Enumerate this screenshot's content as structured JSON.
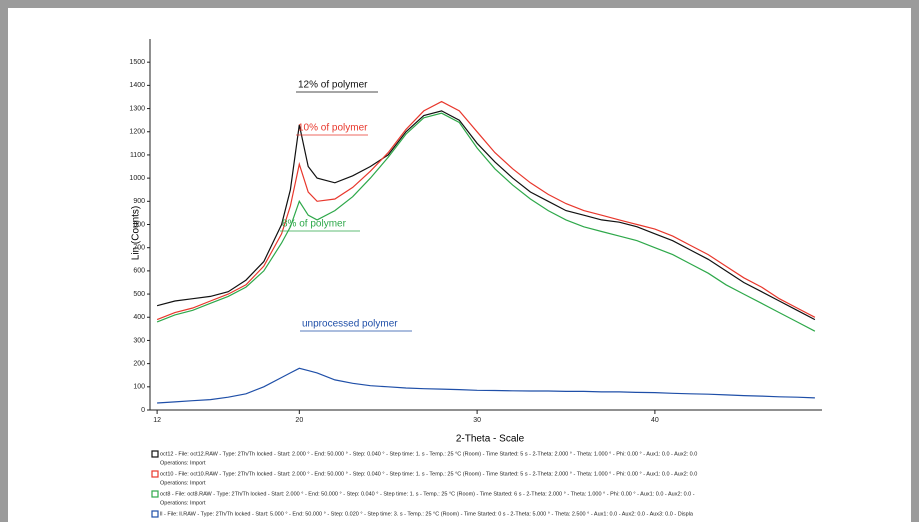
{
  "chart_data": {
    "type": "line",
    "x_label": "2-Theta - Scale",
    "y_label": "Lin (Counts)",
    "xlim": [
      11.6,
      49.4
    ],
    "xticks": [
      12,
      20,
      30,
      40
    ],
    "ylim": [
      0,
      1600
    ],
    "yticks": [
      0,
      100,
      200,
      300,
      400,
      500,
      600,
      700,
      800,
      900,
      1000,
      1100,
      1200,
      1300,
      1400,
      1500
    ],
    "x": [
      12,
      13,
      14,
      15,
      16,
      17,
      18,
      19,
      19.5,
      20,
      20.5,
      21,
      22,
      23,
      24,
      25,
      26,
      27,
      28,
      29,
      30,
      31,
      32,
      33,
      34,
      35,
      36,
      37,
      38,
      39,
      40,
      41,
      42,
      43,
      44,
      45,
      46,
      47,
      48,
      49
    ],
    "series": [
      {
        "name": "oct12 - File: oct12.RAW - Type: 2Th/Th locked - Start: 2.000 ° - End: 50.000 ° - Step: 0.040 ° - Step time: 1. s - Temp.: 25 °C (Room) - Time Started: 5 s - 2-Theta: 2.000 ° - Theta: 1.000 ° - Phi: 0.00 ° - Aux1: 0.0 - Aux2: 0.0",
        "note": "Operations: Import",
        "color": "#111111",
        "values": [
          450,
          470,
          480,
          490,
          510,
          560,
          640,
          800,
          950,
          1230,
          1050,
          1000,
          980,
          1010,
          1050,
          1100,
          1200,
          1270,
          1290,
          1250,
          1150,
          1070,
          1000,
          940,
          900,
          860,
          840,
          820,
          810,
          790,
          760,
          730,
          690,
          650,
          600,
          550,
          510,
          470,
          430,
          390
        ]
      },
      {
        "name": "oct10 - File: oct10.RAW - Type: 2Th/Th locked - Start: 2.000 ° - End: 50.000 ° - Step: 0.040 ° - Step time: 1. s - Temp.: 25 °C (Room) - Time Started: 5 s - 2-Theta: 2.000 ° - Theta: 1.000 ° - Phi: 0.00 ° - Aux1: 0.0 - Aux2: 0.0",
        "note": "Operations: Import",
        "color": "#e8372c",
        "values": [
          390,
          420,
          440,
          470,
          500,
          540,
          620,
          760,
          880,
          1060,
          940,
          900,
          910,
          960,
          1030,
          1110,
          1210,
          1290,
          1330,
          1290,
          1200,
          1110,
          1040,
          980,
          930,
          890,
          860,
          840,
          820,
          800,
          780,
          750,
          710,
          670,
          620,
          570,
          530,
          480,
          440,
          400
        ]
      },
      {
        "name": "oct8 - File: oct8.RAW - Type: 2Th/Th locked - Start: 2.000 ° - End: 50.000 ° - Step: 0.040 ° - Step time: 1. s - Temp.: 25 °C (Room) - Time Started: 6 s - 2-Theta: 2.000 ° - Theta: 1.000 ° - Phi: 0.00 ° - Aux1: 0.0 - Aux2: 0.0 -",
        "note": "Operations: Import",
        "color": "#2ea84a",
        "values": [
          380,
          410,
          430,
          460,
          490,
          530,
          600,
          720,
          790,
          900,
          840,
          820,
          860,
          920,
          1000,
          1090,
          1190,
          1260,
          1280,
          1240,
          1130,
          1040,
          970,
          910,
          860,
          820,
          790,
          770,
          750,
          730,
          700,
          670,
          630,
          590,
          540,
          500,
          460,
          420,
          380,
          340
        ]
      },
      {
        "name": "ll - File: ll.RAW - Type: 2Th/Th locked - Start: 5.000 ° - End: 50.000 ° - Step: 0.020 ° - Step time: 3. s - Temp.: 25 °C (Room) - Time Started: 0 s - 2-Theta: 5.000 ° - Theta: 2.500 ° - Aux1: 0.0 - Aux2: 0.0 - Aux3: 0.0 - Displa",
        "color": "#1f4fa8",
        "values": [
          30,
          35,
          40,
          45,
          55,
          70,
          100,
          140,
          160,
          180,
          170,
          160,
          130,
          115,
          105,
          100,
          95,
          92,
          90,
          88,
          85,
          84,
          83,
          82,
          82,
          80,
          80,
          78,
          78,
          76,
          75,
          72,
          70,
          68,
          65,
          62,
          60,
          57,
          55,
          52
        ]
      }
    ],
    "annotations": [
      {
        "text": "12% of polymer",
        "color": "#111111"
      },
      {
        "text": "10% of polymer",
        "color": "#e8372c"
      },
      {
        "text": "8% of polymer",
        "color": "#2ea84a"
      },
      {
        "text": "unprocessed polymer",
        "color": "#1f4fa8"
      }
    ]
  }
}
